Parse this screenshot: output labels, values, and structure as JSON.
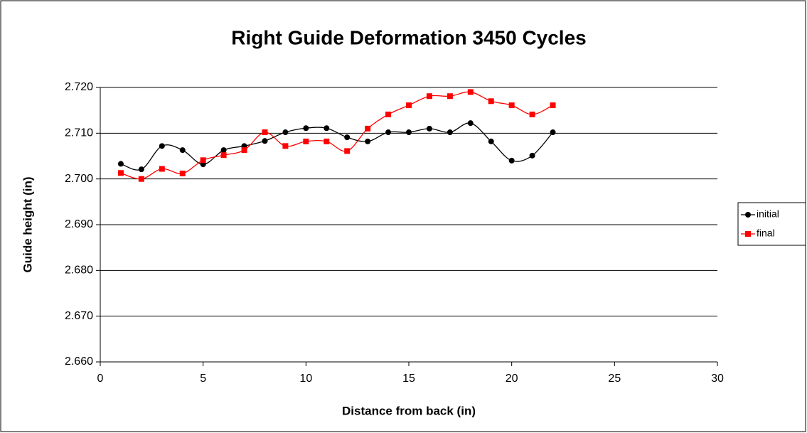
{
  "chart_data": {
    "type": "line",
    "title": "Right Guide Deformation 3450 Cycles",
    "x_label": "Distance from back (in)",
    "y_label": "Guide height (in)",
    "x": [
      1,
      2,
      3,
      4,
      5,
      6,
      7,
      8,
      9,
      10,
      11,
      12,
      13,
      14,
      15,
      16,
      17,
      18,
      19,
      20,
      21,
      22
    ],
    "series": [
      {
        "name": "initial",
        "color": "#000000",
        "marker": "circle",
        "values": [
          2.7033,
          2.7021,
          2.7072,
          2.7063,
          2.7032,
          2.7063,
          2.7072,
          2.7083,
          2.7102,
          2.7111,
          2.7111,
          2.7091,
          2.7082,
          2.7102,
          2.7102,
          2.711,
          2.7102,
          2.7122,
          2.7082,
          2.704,
          2.7051,
          2.7102
        ]
      },
      {
        "name": "final",
        "color": "#ff0000",
        "marker": "square",
        "values": [
          2.7013,
          2.7,
          2.7022,
          2.7012,
          2.7041,
          2.7052,
          2.7063,
          2.7102,
          2.7072,
          2.7082,
          2.7082,
          2.7061,
          2.711,
          2.7141,
          2.7161,
          2.7181,
          2.7181,
          2.719,
          2.717,
          2.7161,
          2.7141,
          2.7161
        ]
      }
    ],
    "xlim": [
      0,
      30
    ],
    "xticks": [
      0,
      5,
      10,
      15,
      20,
      25,
      30
    ],
    "ylim": [
      2.66,
      2.72
    ],
    "yticks": [
      {
        "value": 2.66,
        "label": "2.660"
      },
      {
        "value": 2.67,
        "label": "2.670"
      },
      {
        "value": 2.68,
        "label": "2.680"
      },
      {
        "value": 2.69,
        "label": "2.690"
      },
      {
        "value": 2.7,
        "label": "2.700"
      },
      {
        "value": 2.71,
        "label": "2.710"
      },
      {
        "value": 2.72,
        "label": "2.720"
      }
    ],
    "grid": true,
    "smooth": true,
    "legend": "right"
  }
}
